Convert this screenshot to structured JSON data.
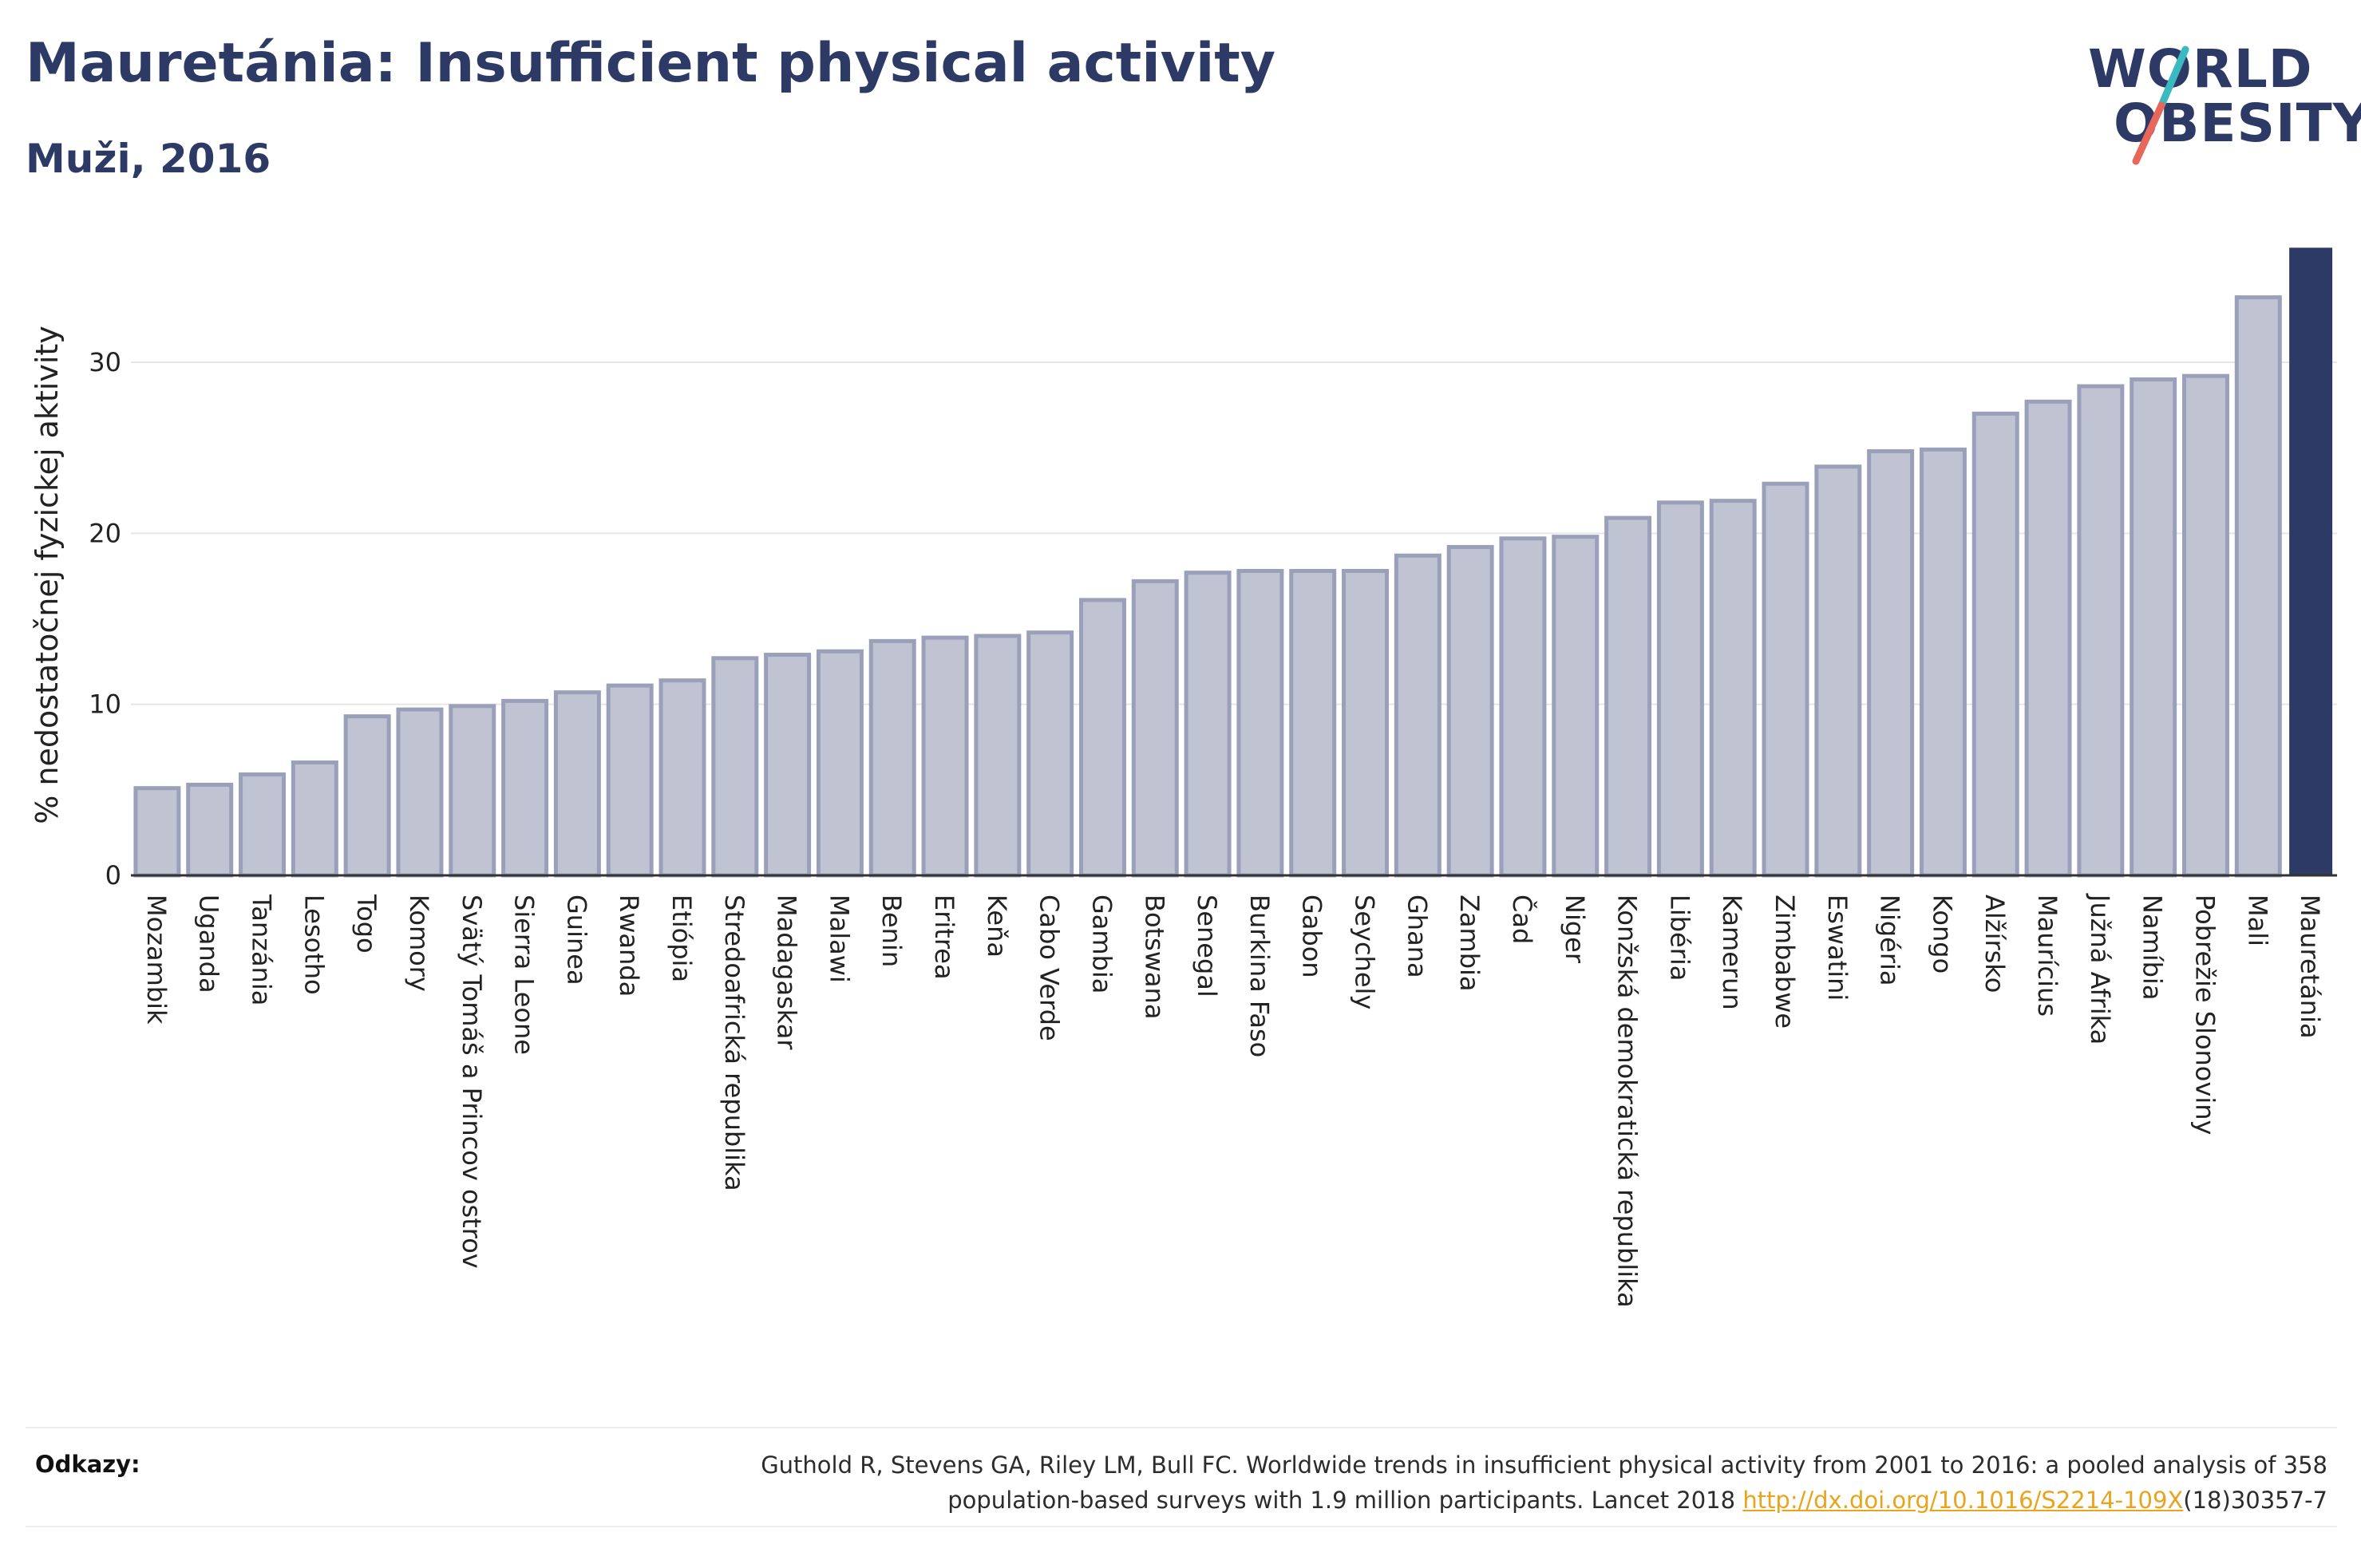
{
  "header": {
    "title": "Mauretánia: Insufficient physical activity",
    "subtitle": "Muži, 2016"
  },
  "logo": {
    "line1": "WORLD",
    "line2": "OBESITY",
    "colors": {
      "text": "#2e3a66",
      "slash_top": "#3bb9c0",
      "slash_bottom": "#e8675a"
    }
  },
  "footer": {
    "label": "Odkazy:",
    "ref_line1": "Guthold R, Stevens GA, Riley LM, Bull FC. Worldwide trends in insufficient physical activity from 2001 to 2016: a pooled analysis of 358",
    "ref_line2_pre": "population-based surveys with 1.9 million participants. Lancet 2018 ",
    "ref_link": "http://dx.doi.org/10.1016/S2214-109X",
    "ref_line2_post": "(18)30357-7"
  },
  "colors": {
    "bar_fill": "#c0c4d2",
    "bar_stroke": "#9aa0ba",
    "highlight": "#2e3a66",
    "grid": "#e6e6e6",
    "link": "#e8a41c"
  },
  "chart_data": {
    "type": "bar",
    "title": "Mauretánia: Insufficient physical activity",
    "subtitle": "Muži, 2016",
    "xlabel": "",
    "ylabel": "% nedostatočnej fyzickej aktivity",
    "ylim": [
      0,
      37
    ],
    "yticks": [
      0,
      10,
      20,
      30
    ],
    "grid": true,
    "highlight": "Mauretánia",
    "categories": [
      "Mozambik",
      "Uganda",
      "Tanzánia",
      "Lesotho",
      "Togo",
      "Komory",
      "Svätý Tomáš a Princov ostrov",
      "Sierra Leone",
      "Guinea",
      "Rwanda",
      "Etiópia",
      "Stredoafrická republika",
      "Madagaskar",
      "Malawi",
      "Benin",
      "Eritrea",
      "Keňa",
      "Cabo Verde",
      "Gambia",
      "Botswana",
      "Senegal",
      "Burkina Faso",
      "Gabon",
      "Seychely",
      "Ghana",
      "Zambia",
      "Čad",
      "Niger",
      "Konžská demokratická republika",
      "Libéria",
      "Kamerun",
      "Zimbabwe",
      "Eswatini",
      "Nigéria",
      "Kongo",
      "Alžírsko",
      "Maurícius",
      "Južná Afrika",
      "Namíbia",
      "Pobrežie Slonoviny",
      "Mali",
      "Mauretánia"
    ],
    "values": [
      5.1,
      5.3,
      5.9,
      6.6,
      9.3,
      9.7,
      9.9,
      10.2,
      10.7,
      11.1,
      11.4,
      12.7,
      12.9,
      13.1,
      13.7,
      13.9,
      14.0,
      14.2,
      16.1,
      17.2,
      17.7,
      17.8,
      17.8,
      17.8,
      18.7,
      19.2,
      19.7,
      19.8,
      20.9,
      21.8,
      21.9,
      22.9,
      23.9,
      24.8,
      24.9,
      27.0,
      27.7,
      28.6,
      29.0,
      29.2,
      33.8,
      36.7
    ]
  }
}
